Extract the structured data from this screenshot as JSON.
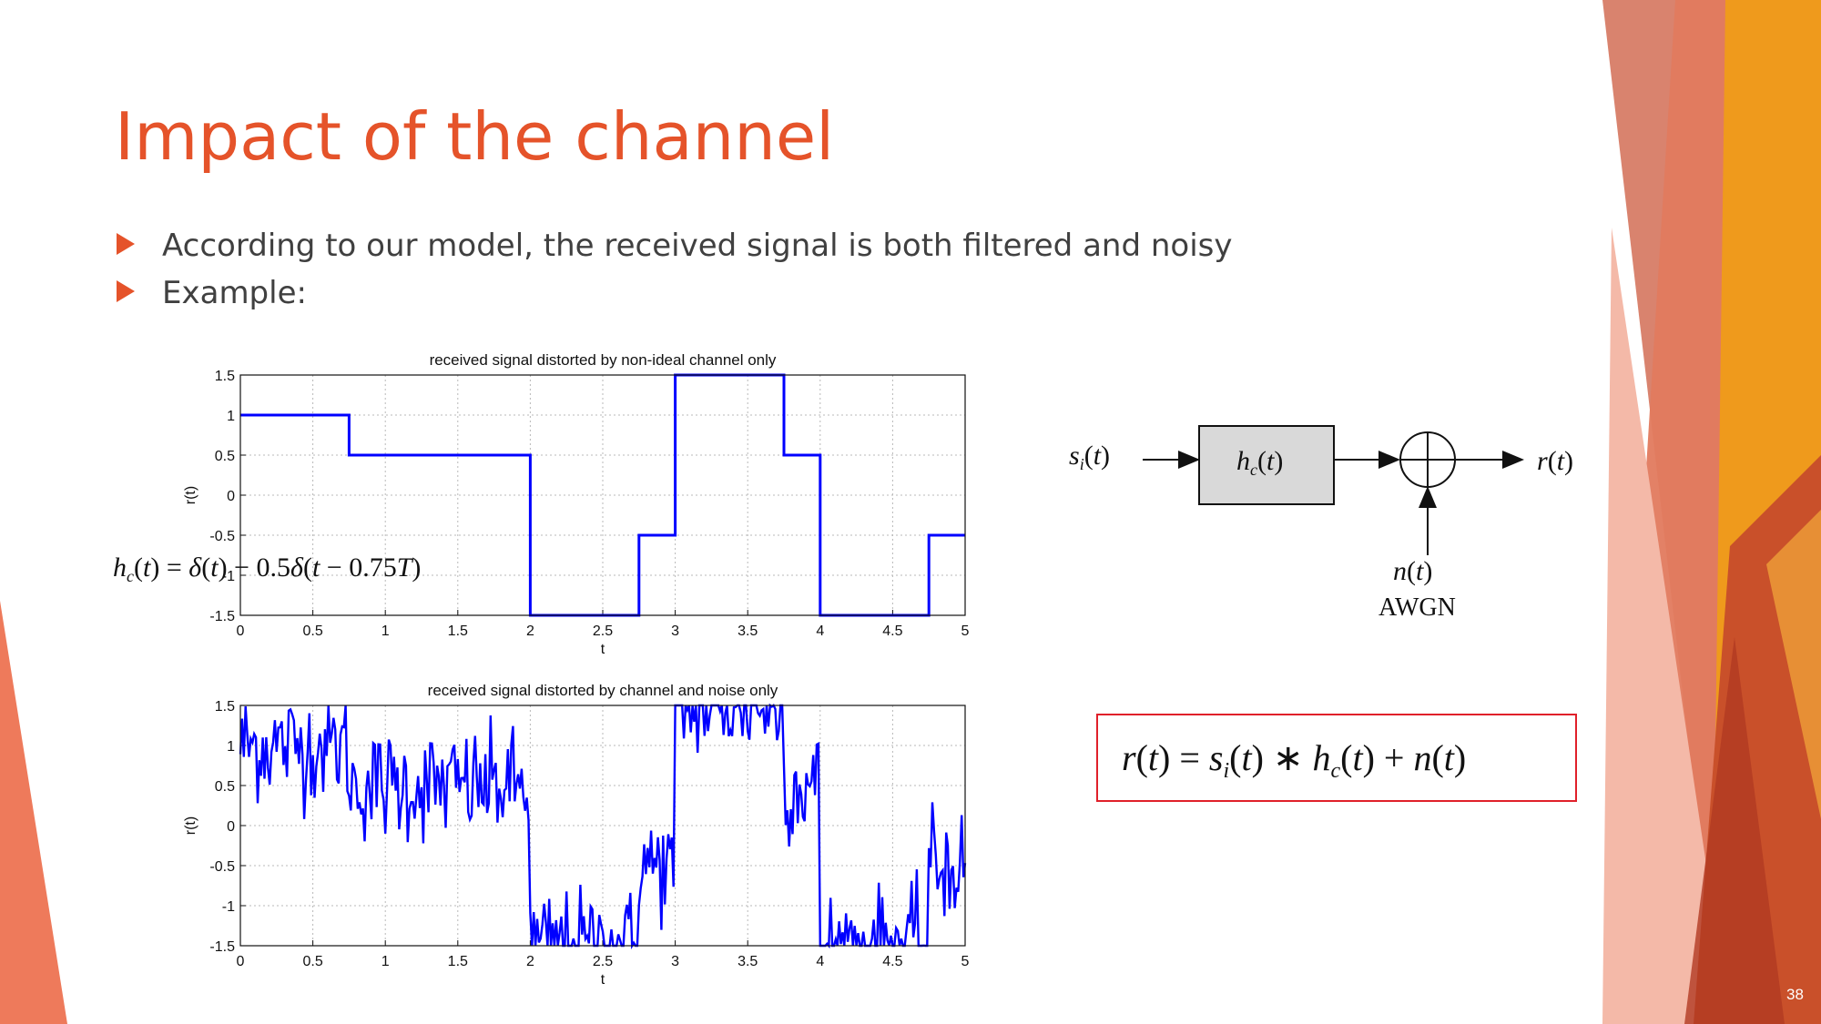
{
  "slide": {
    "title": "Impact of the channel",
    "bullets": [
      "According to our model, the received signal is both filtered and noisy",
      "Example:"
    ],
    "page_number": "38",
    "accent_color": "#e5532a"
  },
  "equations": {
    "channel_response": "h_c(t) = δ(t) − 0.5δ(t − 0.75T)",
    "received_signal": "r(t) = s_i(t) * h_c(t) + n(t)"
  },
  "block_diagram": {
    "input": "s_i(t)",
    "filter": "h_c(t)",
    "output": "r(t)",
    "noise": "n(t)",
    "noise_label": "AWGN"
  },
  "chart_data": [
    {
      "type": "line",
      "title": "received signal distorted by non-ideal channel only",
      "xlabel": "t",
      "ylabel": "r(t)",
      "xlim": [
        0,
        5
      ],
      "ylim": [
        -1.5,
        1.5
      ],
      "xticks": [
        "0",
        "0.5",
        "1",
        "1.5",
        "2",
        "2.5",
        "3",
        "3.5",
        "4",
        "4.5",
        "5"
      ],
      "yticks": [
        "1.5",
        "1",
        "0.5",
        "0",
        "-0.5",
        "-1",
        "-1.5"
      ],
      "grid": true,
      "color": "#0000ff",
      "series": [
        {
          "x": [
            0,
            0.75,
            0.75,
            2,
            2,
            2.75,
            2.75,
            3,
            3,
            3.75,
            3.75,
            4,
            4,
            4.75,
            4.75,
            5
          ],
          "y": [
            1,
            1,
            0.5,
            0.5,
            -1.5,
            -1.5,
            -0.5,
            -0.5,
            1.5,
            1.5,
            0.5,
            0.5,
            -1.5,
            -1.5,
            -0.5,
            -0.5
          ]
        }
      ]
    },
    {
      "type": "line",
      "title": "received signal distorted by channel and noise only",
      "xlabel": "t",
      "ylabel": "r(t)",
      "xlim": [
        0,
        5
      ],
      "ylim": [
        -1.5,
        1.5
      ],
      "xticks": [
        "0",
        "0.5",
        "1",
        "1.5",
        "2",
        "2.5",
        "3",
        "3.5",
        "4",
        "4.5",
        "5"
      ],
      "yticks": [
        "1.5",
        "1",
        "0.5",
        "0",
        "-0.5",
        "-1",
        "-1.5"
      ],
      "grid": true,
      "color": "#0000ff",
      "noise_std": 0.35,
      "series": [
        {
          "x": [
            0,
            0.75,
            0.75,
            2,
            2,
            2.75,
            2.75,
            3,
            3,
            3.75,
            3.75,
            4,
            4,
            4.75,
            4.75,
            5
          ],
          "y": [
            1,
            1,
            0.5,
            0.5,
            -1.5,
            -1.5,
            -0.5,
            -0.5,
            1.5,
            1.5,
            0.5,
            0.5,
            -1.5,
            -1.5,
            -0.5,
            -0.5
          ]
        }
      ]
    }
  ]
}
